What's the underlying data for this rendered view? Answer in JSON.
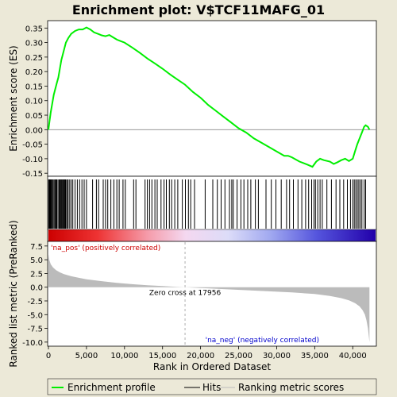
{
  "chart_data": {
    "type": "line",
    "title": "Enrichment plot: V$TCF11MAFG_01",
    "xlabel": "Rank in Ordered Dataset",
    "top_panel": {
      "ylabel": "Enrichment score (ES)",
      "ylim": [
        -0.155,
        0.37
      ],
      "yticks": [
        "0.35",
        "0.30",
        "0.25",
        "0.20",
        "0.15",
        "0.10",
        "0.05",
        "0.00",
        "-0.05",
        "-0.10",
        "-0.15"
      ],
      "series": [
        {
          "name": "Enrichment profile",
          "color": "#00ee00",
          "x": [
            0,
            150,
            300,
            500,
            700,
            900,
            1100,
            1300,
            1500,
            1700,
            1900,
            2100,
            2300,
            2600,
            3000,
            3500,
            4000,
            4500,
            5000,
            5500,
            6000,
            6500,
            7000,
            7500,
            8000,
            8500,
            9000,
            9500,
            10000,
            11000,
            12000,
            13000,
            14000,
            15000,
            16000,
            17000,
            17956,
            19000,
            20000,
            21000,
            22000,
            23000,
            24000,
            25000,
            26000,
            27000,
            28000,
            29000,
            30000,
            31000,
            31500,
            32000,
            33000,
            34000,
            34700,
            35200,
            35700,
            36200,
            37000,
            37500,
            38000,
            38500,
            39000,
            39500,
            40000,
            40300,
            40600,
            40900,
            41200,
            41500,
            41700,
            42000,
            42200
          ],
          "values": [
            0.0,
            0.03,
            0.06,
            0.09,
            0.12,
            0.14,
            0.16,
            0.18,
            0.21,
            0.24,
            0.26,
            0.28,
            0.3,
            0.315,
            0.33,
            0.34,
            0.345,
            0.345,
            0.352,
            0.345,
            0.335,
            0.33,
            0.325,
            0.322,
            0.326,
            0.318,
            0.31,
            0.305,
            0.3,
            0.283,
            0.265,
            0.245,
            0.228,
            0.21,
            0.19,
            0.172,
            0.155,
            0.13,
            0.11,
            0.085,
            0.065,
            0.045,
            0.025,
            0.005,
            -0.01,
            -0.03,
            -0.045,
            -0.06,
            -0.075,
            -0.09,
            -0.09,
            -0.095,
            -0.11,
            -0.12,
            -0.128,
            -0.11,
            -0.1,
            -0.105,
            -0.11,
            -0.118,
            -0.112,
            -0.105,
            -0.1,
            -0.108,
            -0.1,
            -0.075,
            -0.05,
            -0.03,
            -0.01,
            0.01,
            0.015,
            0.01,
            0.0
          ]
        }
      ]
    },
    "hits_panel": {
      "hit_ranks": [
        30,
        90,
        160,
        230,
        300,
        400,
        500,
        620,
        750,
        880,
        1000,
        1100,
        1250,
        1400,
        1500,
        1600,
        1700,
        1800,
        1900,
        2000,
        2100,
        2200,
        2300,
        2450,
        2600,
        2800,
        3000,
        3200,
        3500,
        3800,
        4100,
        4400,
        4700,
        5000,
        5800,
        6300,
        6600,
        7200,
        7500,
        7800,
        8200,
        8600,
        9000,
        9300,
        9800,
        10100,
        11200,
        11500,
        12700,
        13000,
        13300,
        13600,
        14000,
        14300,
        14800,
        15200,
        15500,
        15900,
        16200,
        16600,
        17000,
        17600,
        18000,
        18400,
        18700,
        19200,
        20600,
        21600,
        22200,
        22700,
        23200,
        23800,
        24100,
        24300,
        24800,
        25300,
        25700,
        26200,
        26600,
        27200,
        27600,
        28600,
        29300,
        29900,
        30600,
        31300,
        31700,
        32200,
        32800,
        33300,
        33800,
        34200,
        34600,
        34900,
        35100,
        35400,
        35700,
        36000,
        36600,
        37200,
        37800,
        38300,
        38800,
        39300,
        39700,
        40000,
        40200,
        40400,
        40600,
        40800,
        41000,
        41200,
        41500,
        41700
      ]
    },
    "metric_panel": {
      "ylabel": "Ranked list metric (PreRanked)",
      "ylim": [
        -10.6,
        8.2
      ],
      "yticks": [
        "7.5",
        "5.0",
        "2.5",
        "0.0",
        "-2.5",
        "-5.0",
        "-7.5",
        "-10.0"
      ],
      "x": [
        0,
        100,
        300,
        600,
        1000,
        1500,
        2000,
        3000,
        4000,
        5000,
        7000,
        9000,
        11000,
        13000,
        15000,
        17000,
        17956,
        20000,
        23000,
        26000,
        29000,
        32000,
        35000,
        37000,
        38500,
        39500,
        40300,
        40900,
        41300,
        41600,
        41800,
        42000,
        42200
      ],
      "values": [
        6.0,
        5.0,
        4.2,
        3.6,
        3.1,
        2.7,
        2.4,
        2.0,
        1.7,
        1.45,
        1.1,
        0.8,
        0.55,
        0.35,
        0.2,
        0.05,
        0.0,
        -0.15,
        -0.35,
        -0.55,
        -0.75,
        -0.95,
        -1.25,
        -1.6,
        -2.0,
        -2.4,
        -2.9,
        -3.5,
        -4.2,
        -5.0,
        -6.0,
        -7.5,
        -10.0
      ],
      "label_pos": "'na_pos' (positively correlated)",
      "label_neg": "'na_neg' (negatively correlated)",
      "zero_cross_label": "Zero cross at 17956",
      "zero_cross_rank": 17956
    },
    "xlim": [
      0,
      43000
    ],
    "xticks": [
      0,
      5000,
      10000,
      15000,
      20000,
      25000,
      30000,
      35000,
      40000
    ],
    "xtick_labels": [
      "0",
      "5,000",
      "10,000",
      "15,000",
      "20,000",
      "25,000",
      "30,000",
      "35,000",
      "40,000"
    ],
    "legend": [
      {
        "label": "Enrichment profile",
        "color": "#00ee00"
      },
      {
        "label": "Hits",
        "color": "#000000"
      },
      {
        "label": "Ranking metric scores",
        "color": "#bbbbbb"
      }
    ],
    "legend_position": "bottom",
    "grid": false,
    "colors": {
      "profile": "#00ee00",
      "metric_fill": "#bbbbbb",
      "pos_label": "#cc0000",
      "neg_label": "#0000cc",
      "background": "#ece9d8"
    }
  }
}
